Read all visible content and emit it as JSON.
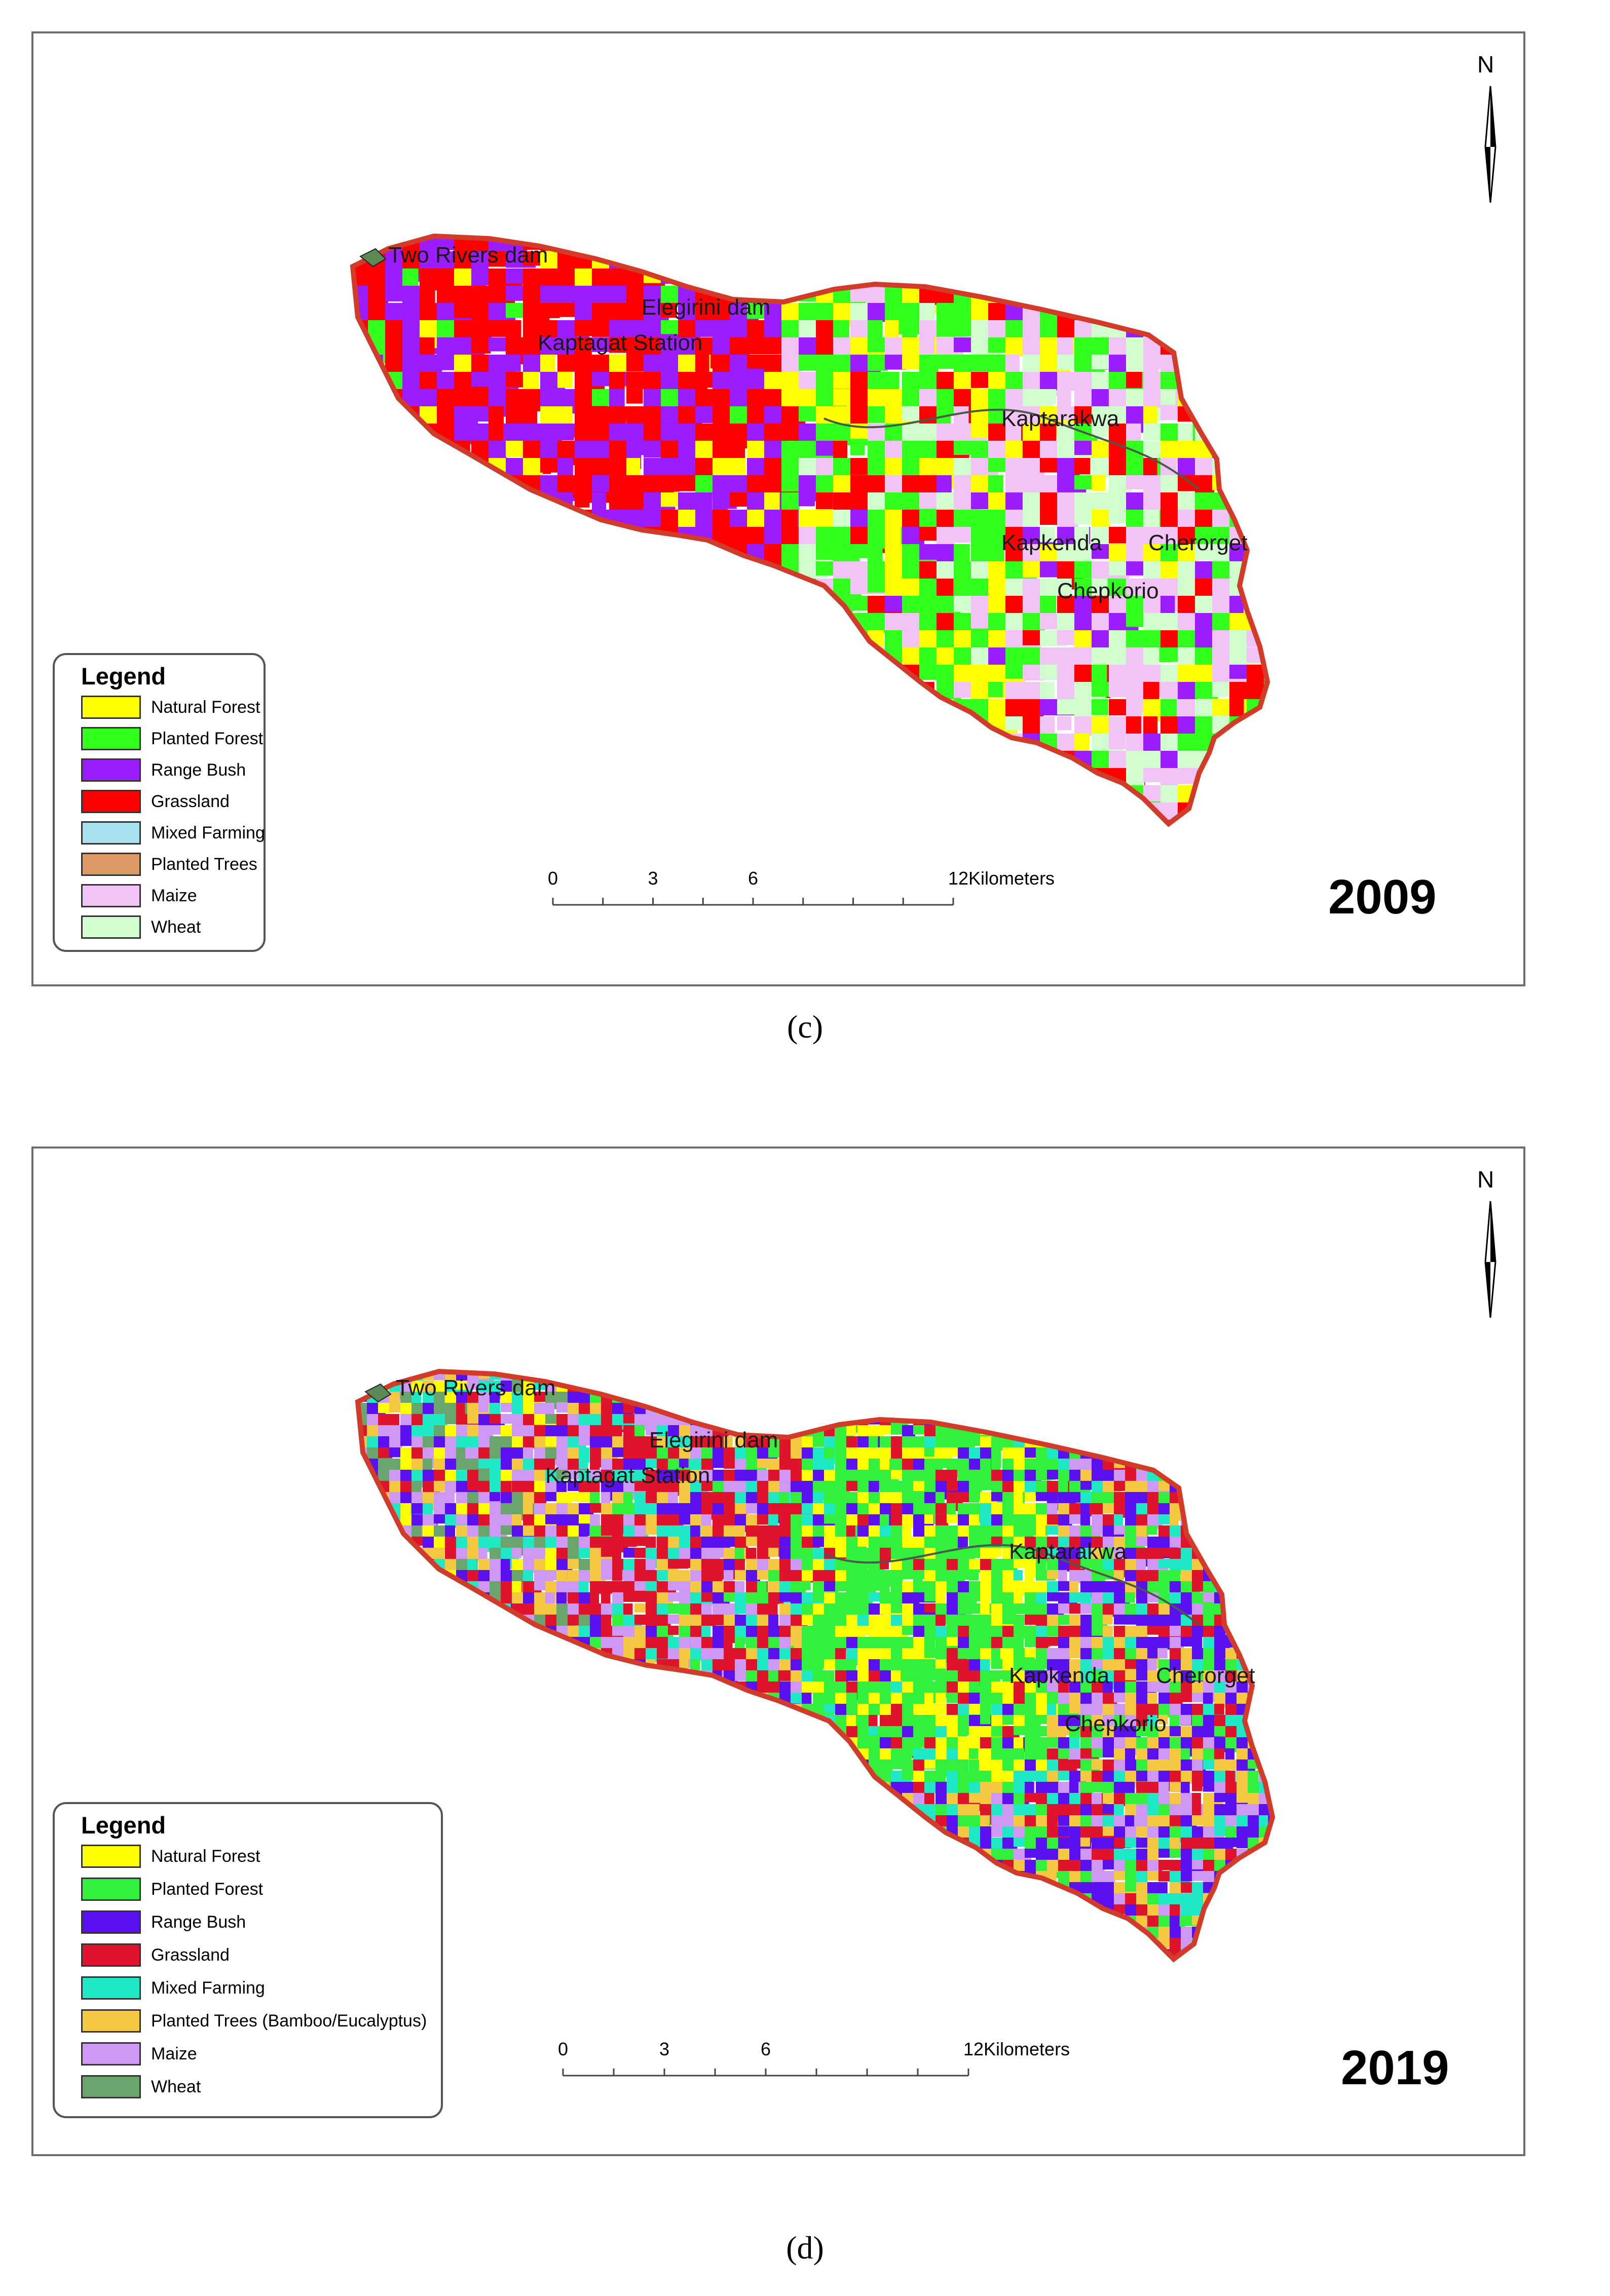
{
  "panels": [
    {
      "caption": "(c)",
      "year": "2009",
      "north": "N",
      "legend": {
        "title": "Legend",
        "items": [
          {
            "label": "Natural Forest",
            "color": "#ffff00"
          },
          {
            "label": "Planted Forest",
            "color": "#33ff1f"
          },
          {
            "label": "Range Bush",
            "color": "#9b1dff"
          },
          {
            "label": "Grassland",
            "color": "#ff0000"
          },
          {
            "label": "Mixed Farming",
            "color": "#a8e1f0"
          },
          {
            "label": "Planted Trees",
            "color": "#de9a66"
          },
          {
            "label": "Maize",
            "color": "#f2c3f5"
          },
          {
            "label": "Wheat",
            "color": "#d2fdcf"
          }
        ]
      },
      "scale": {
        "ticks": [
          "0",
          "3",
          "6",
          "12"
        ],
        "unit": "Kilometers"
      },
      "places": [
        "Two Rivers dam",
        "Elegirini dam",
        "Kaptagat Station",
        "Kaptarakwa",
        "Kapkenda",
        "Cherorget",
        "Chepkorio"
      ]
    },
    {
      "caption": "(d)",
      "year": "2019",
      "north": "N",
      "legend": {
        "title": "Legend",
        "items": [
          {
            "label": "Natural Forest",
            "color": "#ffff00"
          },
          {
            "label": "Planted Forest",
            "color": "#33f03c"
          },
          {
            "label": "Range Bush",
            "color": "#5b10f0"
          },
          {
            "label": "Grassland",
            "color": "#e0132d"
          },
          {
            "label": "Mixed Farming",
            "color": "#1fe8c5"
          },
          {
            "label": "Planted Trees (Bamboo/Eucalyptus)",
            "color": "#f5c842"
          },
          {
            "label": "Maize",
            "color": "#cf98f5"
          },
          {
            "label": "Wheat",
            "color": "#6aa56d"
          }
        ]
      },
      "scale": {
        "ticks": [
          "0",
          "3",
          "6",
          "12"
        ],
        "unit": "Kilometers"
      },
      "places": [
        "Two Rivers dam",
        "Elegirini dam",
        "Kaptagat Station",
        "Kaptarakwa",
        "Kapkenda",
        "Cherorget",
        "Chepkorio"
      ]
    }
  ]
}
